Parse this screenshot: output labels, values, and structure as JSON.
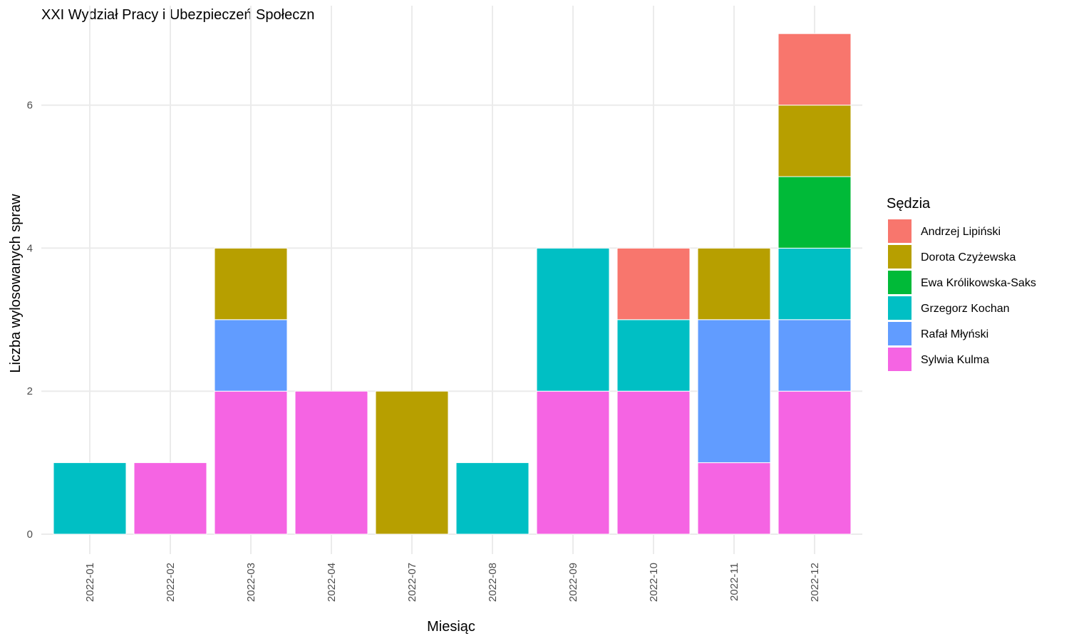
{
  "chart_data": {
    "type": "bar",
    "stacked": true,
    "title": "XXI Wydział Pracy i Ubezpieczeń Społeczn",
    "xlabel": "Miesiąc",
    "ylabel": "Liczba wylosowanych spraw",
    "ylim": [
      0,
      7
    ],
    "yticks": [
      "0",
      "2",
      "4",
      "6"
    ],
    "grid": true,
    "legend": {
      "title": "Sędzia",
      "placement": "right"
    },
    "categories": [
      "2022-01",
      "2022-02",
      "2022-03",
      "2022-04",
      "2022-07",
      "2022-08",
      "2022-09",
      "2022-10",
      "2022-11",
      "2022-12"
    ],
    "series": [
      {
        "name": "Andrzej Lipiński",
        "color": "#F8766D",
        "values": [
          0,
          0,
          0,
          0,
          0,
          0,
          0,
          1,
          0,
          1
        ]
      },
      {
        "name": "Dorota Czyżewska",
        "color": "#B79F00",
        "values": [
          0,
          0,
          1,
          0,
          2,
          0,
          0,
          0,
          1,
          1
        ]
      },
      {
        "name": "Ewa Królikowska-Saks",
        "color": "#00BA38",
        "values": [
          0,
          0,
          0,
          0,
          0,
          0,
          0,
          0,
          0,
          1
        ]
      },
      {
        "name": "Grzegorz Kochan",
        "color": "#00BFC4",
        "values": [
          1,
          0,
          0,
          0,
          0,
          1,
          2,
          1,
          0,
          1
        ]
      },
      {
        "name": "Rafał Młyński",
        "color": "#619CFF",
        "values": [
          0,
          0,
          1,
          0,
          0,
          0,
          0,
          0,
          2,
          1
        ]
      },
      {
        "name": "Sylwia Kulma",
        "color": "#F564E3",
        "values": [
          0,
          1,
          2,
          2,
          0,
          0,
          2,
          2,
          1,
          2
        ]
      }
    ]
  }
}
